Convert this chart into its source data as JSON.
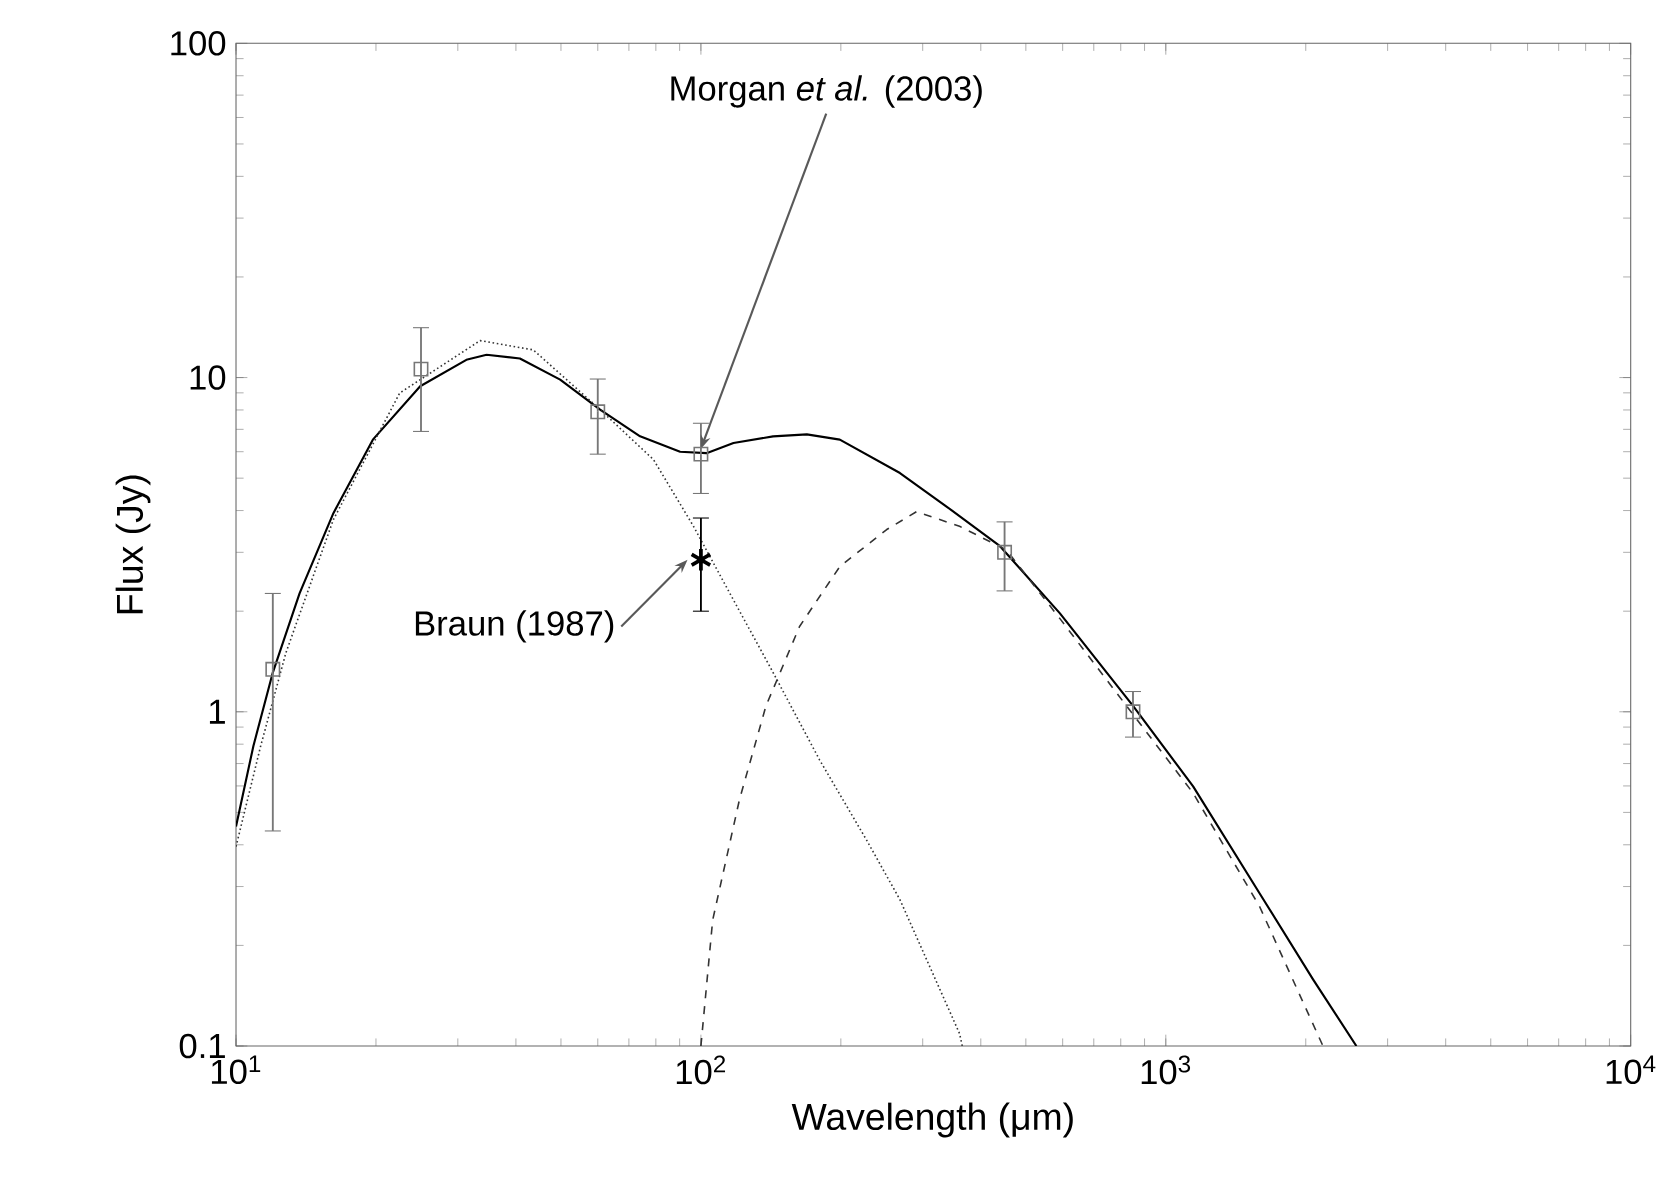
{
  "chart_data": {
    "type": "line",
    "xlabel": "Wavelength (μm)",
    "ylabel": "Flux (Jy)",
    "log": "xy",
    "xlim": [
      10,
      10000
    ],
    "ylim": [
      0.1,
      100
    ],
    "xticks": [
      {
        "value": 10,
        "label": "10$^{1}$"
      },
      {
        "value": 100,
        "label": "10$^{2}$"
      },
      {
        "value": 1000,
        "label": "10$^{3}$"
      },
      {
        "value": 10000,
        "label": "10$^{4}$"
      }
    ],
    "yticks": [
      0.1,
      1,
      10,
      100
    ],
    "series": [
      {
        "type": "line",
        "color": "#000000",
        "line_style": "solid",
        "marker": "none",
        "x": [
          10.0,
          10.9,
          12.0,
          13.7,
          16.2,
          19.7,
          24.9,
          31.3,
          34.6,
          40.8,
          49.8,
          60.7,
          74.0,
          90.2,
          102.8,
          117.5,
          143,
          169,
          199,
          268,
          337,
          440,
          592,
          851,
          1145,
          1592,
          2075,
          2570
        ],
        "values": [
          0.454,
          0.79,
          1.31,
          2.26,
          3.93,
          6.52,
          9.42,
          11.3,
          11.7,
          11.4,
          9.86,
          8.02,
          6.67,
          6.0,
          5.94,
          6.37,
          6.67,
          6.76,
          6.52,
          5.18,
          4.12,
          3.13,
          1.97,
          1.04,
          0.598,
          0.286,
          0.158,
          0.1
        ]
      },
      {
        "type": "line",
        "color": "#333333",
        "line_style": "dotted",
        "marker": "none",
        "x": [
          10.0,
          11.3,
          12.8,
          16.2,
          22.5,
          33.5,
          43.6,
          60.7,
          79.1,
          96.4,
          117.5,
          143,
          180,
          227,
          268,
          360,
          365
        ],
        "values": [
          0.395,
          0.79,
          1.5,
          3.76,
          8.99,
          12.9,
          12.1,
          8.02,
          5.68,
          3.59,
          2.16,
          1.31,
          0.718,
          0.414,
          0.274,
          0.109,
          0.1
        ]
      },
      {
        "type": "line",
        "color": "#333333",
        "line_style": "dashed",
        "marker": "none",
        "x": [
          100,
          106,
          121,
          138,
          163,
          199,
          251,
          291,
          360,
          454,
          592,
          851,
          1145,
          1592,
          2178
        ],
        "values": [
          0.1,
          0.238,
          0.545,
          1.04,
          1.8,
          2.72,
          3.51,
          3.97,
          3.59,
          3.05,
          1.9,
          0.98,
          0.571,
          0.261,
          0.1
        ]
      },
      {
        "type": "scatter",
        "color": "#777777",
        "marker": "square",
        "x": [
          12,
          25,
          60,
          100,
          450,
          850
        ],
        "values": [
          1.34,
          10.6,
          7.9,
          5.9,
          3.0,
          1.0
        ],
        "errors": [
          [
            0.44,
            2.26
          ],
          [
            6.9,
            14.1
          ],
          [
            5.9,
            9.9
          ],
          [
            4.5,
            7.3
          ],
          [
            2.3,
            3.7
          ],
          [
            0.84,
            1.15
          ]
        ]
      },
      {
        "type": "scatter",
        "color": "#000000",
        "marker": "cross",
        "x": [
          100
        ],
        "values": [
          2.85
        ],
        "errors": [
          [
            2.0,
            3.8
          ]
        ]
      }
    ],
    "annotations": [
      {
        "text": "Morgan *et al.* (2003)",
        "x": 100,
        "y": 5.9
      },
      {
        "text": "Braun (1987)",
        "x": 100,
        "y": 2.85
      }
    ]
  }
}
